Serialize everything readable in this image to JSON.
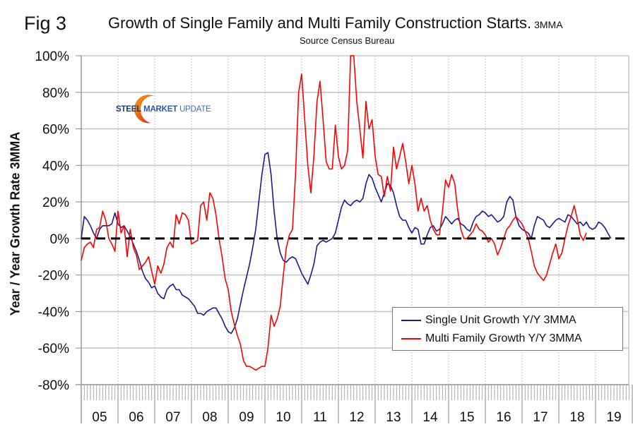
{
  "figure": {
    "label": "Fig 3",
    "title": "Growth of Single Family and Multi Family Construction Starts.",
    "title_suffix": "3MMA",
    "subtitle": "Source Census Bureau",
    "logo": {
      "part1": "STEEL",
      "part2": "MARKET",
      "part3": "UPDATE"
    }
  },
  "chart_data": {
    "type": "line",
    "title": "Growth of Single Family and Multi Family Construction Starts. 3MMA",
    "subtitle": "Source Census Bureau",
    "xlabel": "",
    "ylabel": "Year / Year Growth Rate 3MMA",
    "ylim": [
      -80,
      100
    ],
    "yticks": [
      100,
      80,
      60,
      40,
      20,
      0,
      -20,
      -40,
      -60,
      -80
    ],
    "ytick_labels": [
      "100%",
      "80%",
      "60%",
      "40%",
      "20%",
      "0%",
      "-20%",
      "-40%",
      "-60%",
      "-80%"
    ],
    "x_start": "2005-01",
    "x_frequency": "monthly",
    "xlim_years": [
      2005,
      2020
    ],
    "xtick_labels": [
      "05",
      "06",
      "07",
      "08",
      "09",
      "10",
      "11",
      "12",
      "13",
      "14",
      "15",
      "16",
      "17",
      "18",
      "19"
    ],
    "grid": true,
    "reference_line": {
      "y": 0,
      "style": "dashed",
      "color": "#000000"
    },
    "legend": {
      "position": "bottom-right"
    },
    "series": [
      {
        "name": "Single Unit Growth Y/Y 3MMA",
        "color": "#1a1a8c",
        "values": [
          0,
          12,
          10,
          7,
          3,
          0,
          5,
          7,
          7,
          7,
          8,
          14,
          8,
          6,
          7,
          4,
          1,
          -3,
          -7,
          -12,
          -18,
          -22,
          -24,
          -27,
          -26,
          -30,
          -32,
          -33,
          -28,
          -26,
          -25,
          -28,
          -28,
          -31,
          -32,
          -33,
          -35,
          -37,
          -41,
          -41,
          -42,
          -40,
          -39,
          -38,
          -38,
          -41,
          -44,
          -48,
          -51,
          -52,
          -49,
          -44,
          -36,
          -28,
          -21,
          -14,
          -5,
          5,
          20,
          35,
          46,
          47,
          35,
          15,
          0,
          -8,
          -12,
          -13,
          -11,
          -10,
          -11,
          -15,
          -19,
          -22,
          -25,
          -20,
          -14,
          -4,
          -2,
          -1,
          -2,
          -1,
          0,
          3,
          10,
          17,
          21,
          19,
          18,
          20,
          21,
          20,
          22,
          30,
          35,
          33,
          28,
          24,
          20,
          25,
          30,
          29,
          25,
          18,
          12,
          10,
          10,
          6,
          3,
          6,
          5,
          -3,
          -3,
          2,
          6,
          7,
          4,
          5,
          8,
          12,
          10,
          8,
          10,
          11,
          8,
          7,
          5,
          4,
          9,
          12,
          13,
          15,
          14,
          12,
          13,
          11,
          9,
          10,
          12,
          20,
          23,
          21,
          12,
          7,
          5,
          4,
          3,
          0,
          7,
          12,
          11,
          10,
          7,
          6,
          8,
          10,
          11,
          10,
          9,
          13,
          12,
          10,
          8,
          9,
          7,
          9,
          6,
          5,
          6,
          9,
          8,
          6,
          3,
          0
        ]
      },
      {
        "name": "Multi Family Growth Y/Y 3MMA",
        "color": "#ff0000",
        "values": [
          -12,
          -5,
          -3,
          -2,
          -5,
          5,
          6,
          15,
          10,
          0,
          -3,
          -7,
          15,
          3,
          7,
          -10,
          5,
          -5,
          -9,
          -17,
          -15,
          -13,
          -10,
          -18,
          -25,
          -15,
          -19,
          -14,
          -5,
          -2,
          -5,
          13,
          8,
          14,
          13,
          10,
          -3,
          -2,
          -1,
          18,
          20,
          10,
          25,
          22,
          13,
          0,
          -10,
          -22,
          -28,
          -40,
          -47,
          -53,
          -58,
          -67,
          -70,
          -70,
          -71,
          -72,
          -71,
          -70,
          -70,
          -60,
          -42,
          -48,
          -44,
          -37,
          -20,
          -5,
          2,
          5,
          35,
          80,
          90,
          65,
          40,
          25,
          45,
          75,
          86,
          65,
          42,
          38,
          38,
          62,
          45,
          38,
          40,
          48,
          100,
          100,
          75,
          60,
          44,
          75,
          60,
          65,
          45,
          35,
          34,
          23,
          34,
          26,
          50,
          38,
          45,
          52,
          42,
          30,
          40,
          30,
          15,
          22,
          15,
          18,
          10,
          5,
          2,
          2,
          15,
          32,
          28,
          35,
          30,
          15,
          5,
          0,
          0,
          2,
          4,
          8,
          5,
          4,
          2,
          -2,
          0,
          -3,
          -9,
          -5,
          0,
          5,
          7,
          10,
          12,
          10,
          8,
          4,
          0,
          -7,
          -15,
          -19,
          -21,
          -23,
          -20,
          -14,
          -8,
          -3,
          -11,
          -8,
          0,
          7,
          12,
          18,
          11,
          2,
          -1,
          3
        ]
      }
    ]
  }
}
